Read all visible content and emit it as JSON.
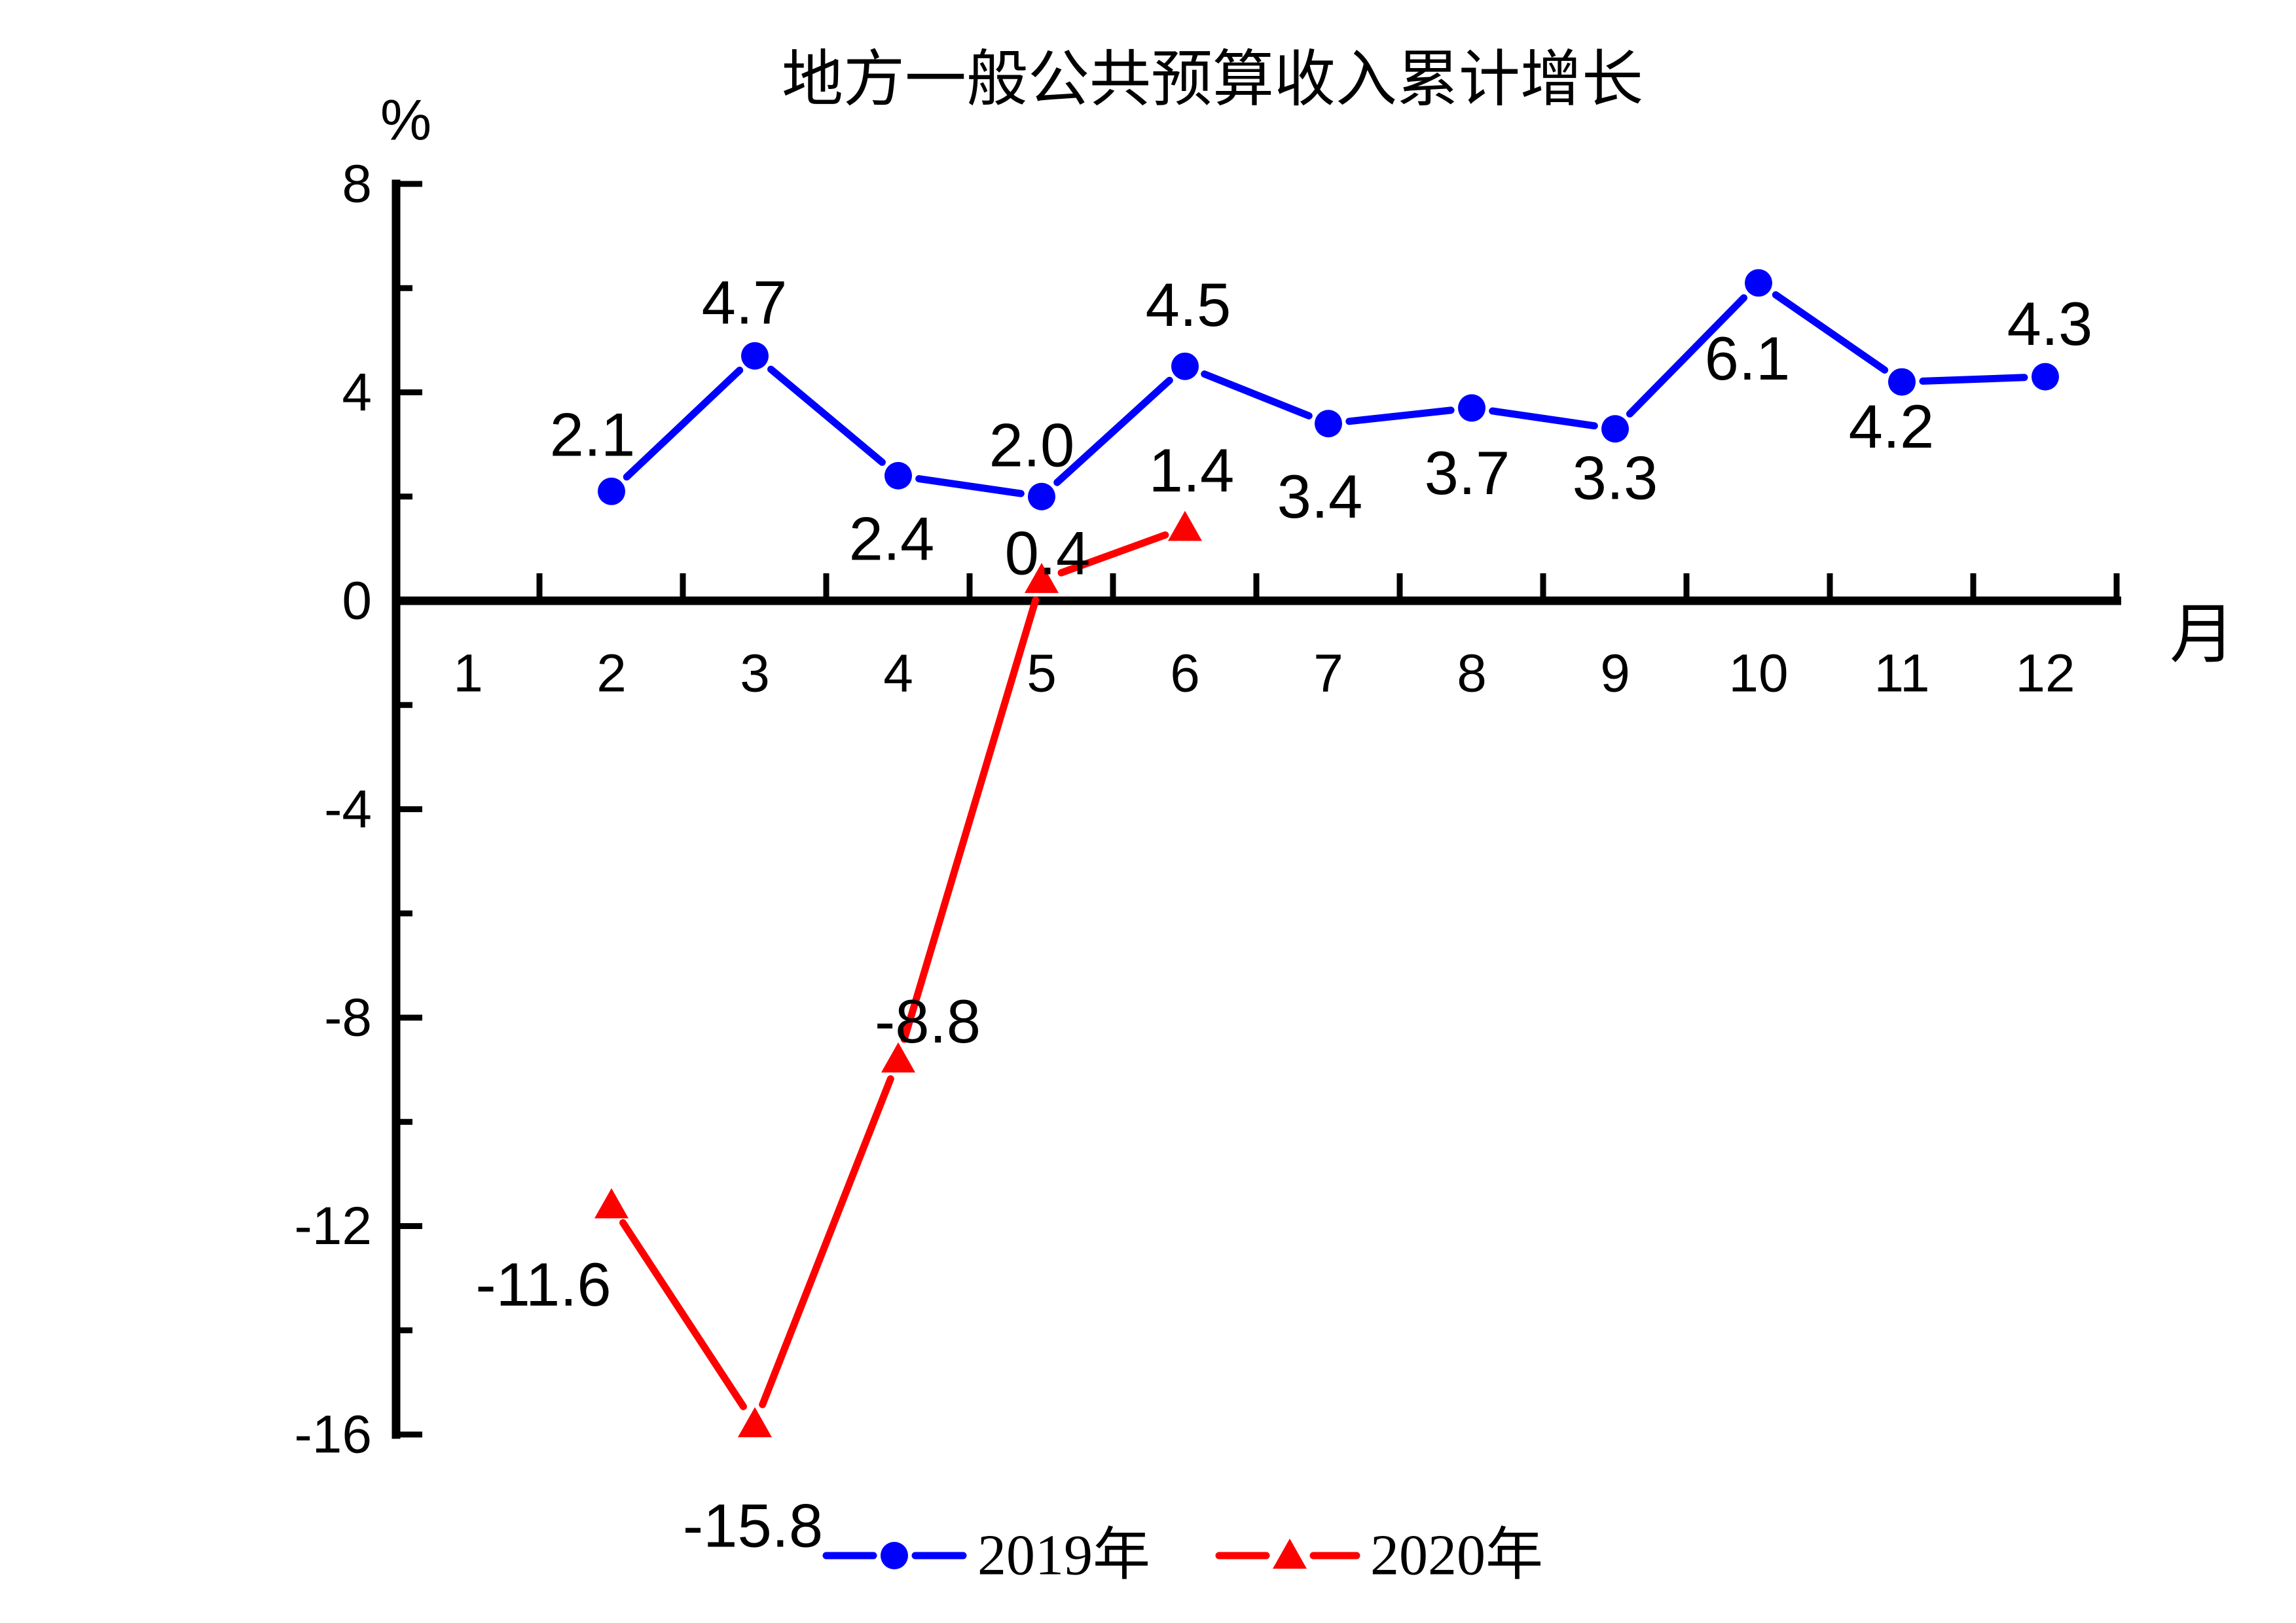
{
  "page": {
    "background": "#ffffff",
    "text_color": "#000000"
  },
  "chart_data": {
    "type": "line",
    "title": "地方一般公共预算收入累计增长",
    "y_unit_label": "%",
    "x_unit_label": "月",
    "x_categories": [
      1,
      2,
      3,
      4,
      5,
      6,
      7,
      8,
      9,
      10,
      11,
      12
    ],
    "ylim": [
      -16,
      8
    ],
    "yticks_major": [
      8,
      4,
      0,
      -4,
      -8,
      -12,
      -16
    ],
    "yticks_minor": [
      6,
      2,
      -2,
      -6,
      -10,
      -14
    ],
    "grid": false,
    "legend_position": "bottom-center",
    "series": [
      {
        "name": "2019年",
        "color": "#0000fe",
        "marker": "circle",
        "months": [
          2,
          3,
          4,
          5,
          6,
          7,
          8,
          9,
          10,
          11,
          12
        ],
        "values": [
          2.1,
          4.7,
          2.4,
          2.0,
          4.5,
          3.4,
          3.7,
          3.3,
          6.1,
          4.2,
          4.3
        ],
        "label_offsets": [
          [
            -29,
            -87
          ],
          [
            -16,
            -82
          ],
          [
            -10,
            96
          ],
          [
            -15,
            -79
          ],
          [
            5,
            -94
          ],
          [
            -13,
            111
          ],
          [
            -7,
            99
          ],
          [
            0,
            75
          ],
          [
            -17,
            115
          ],
          [
            -16,
            68
          ],
          [
            7,
            -81
          ]
        ]
      },
      {
        "name": "2020年",
        "color": "#fe0000",
        "marker": "triangle",
        "months": [
          2,
          3,
          4,
          5,
          6
        ],
        "values": [
          -11.6,
          -15.8,
          -8.8,
          0.4,
          1.4
        ],
        "label_offsets": [
          [
            -104,
            121
          ],
          [
            -3,
            155
          ],
          [
            45,
            -58
          ],
          [
            9,
            -41
          ],
          [
            10,
            -88
          ]
        ]
      }
    ]
  }
}
